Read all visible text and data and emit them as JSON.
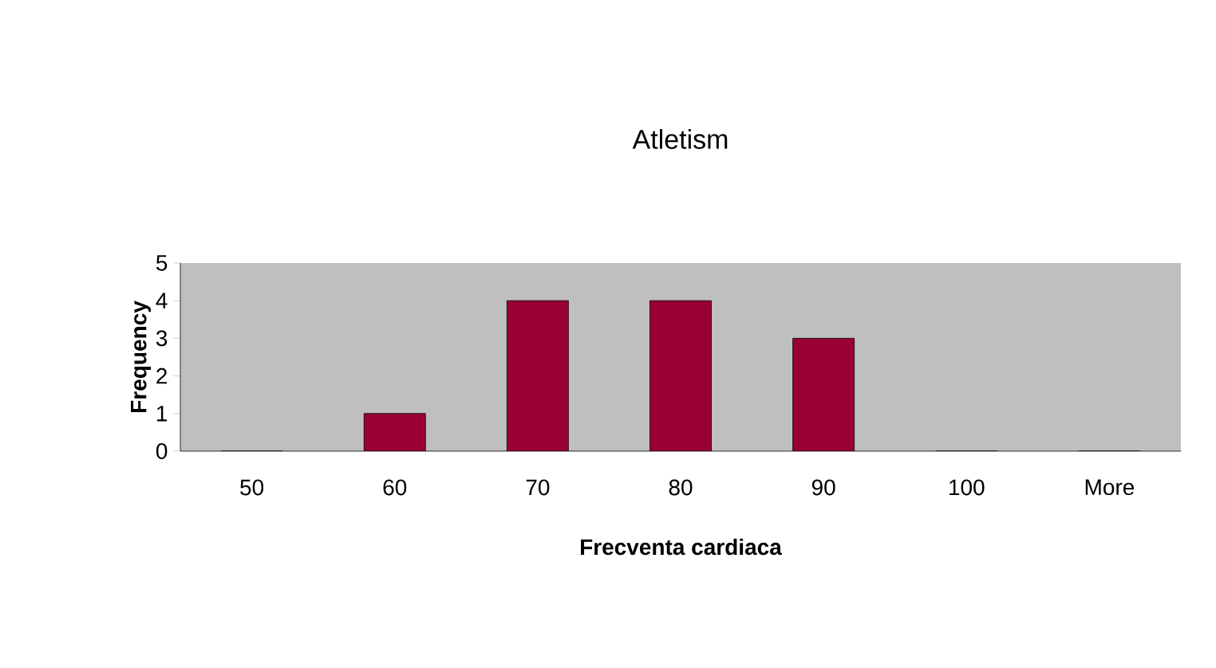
{
  "chart_data": {
    "type": "bar",
    "title": "Atletism",
    "xlabel": "Frecventa cardiaca",
    "ylabel": "Frequency",
    "categories": [
      "50",
      "60",
      "70",
      "80",
      "90",
      "100",
      "More"
    ],
    "values": [
      0,
      1,
      4,
      4,
      3,
      0,
      0
    ],
    "color": "#990033",
    "ylim": [
      0,
      5
    ],
    "yticks": [
      0,
      1,
      2,
      3,
      4,
      5
    ]
  }
}
